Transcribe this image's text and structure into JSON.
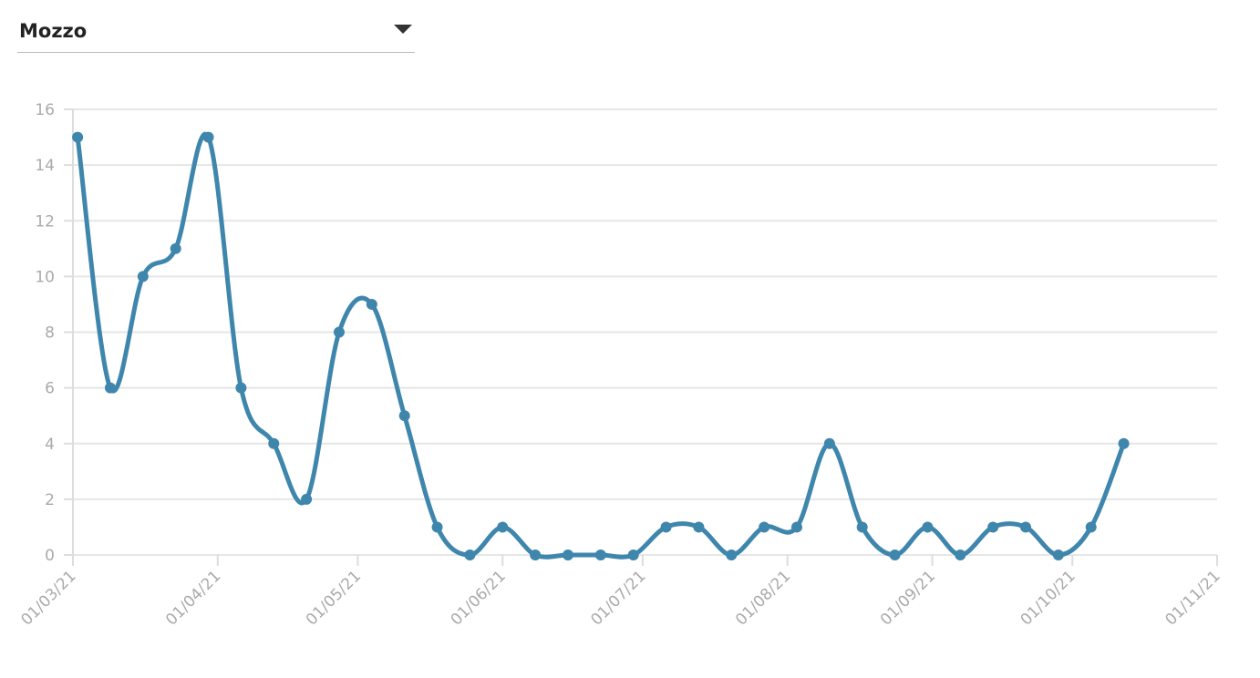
{
  "selector": {
    "label": "Mozzo"
  },
  "chart_data": {
    "type": "line",
    "x": [
      "2021-03-02",
      "2021-03-09",
      "2021-03-16",
      "2021-03-23",
      "2021-03-30",
      "2021-04-06",
      "2021-04-13",
      "2021-04-20",
      "2021-04-27",
      "2021-05-04",
      "2021-05-11",
      "2021-05-18",
      "2021-05-25",
      "2021-06-01",
      "2021-06-08",
      "2021-06-15",
      "2021-06-22",
      "2021-06-29",
      "2021-07-06",
      "2021-07-13",
      "2021-07-20",
      "2021-07-27",
      "2021-08-03",
      "2021-08-10",
      "2021-08-17",
      "2021-08-24",
      "2021-08-31",
      "2021-09-07",
      "2021-09-14",
      "2021-09-21",
      "2021-09-28",
      "2021-10-05",
      "2021-10-12"
    ],
    "series": [
      {
        "color": "#3f86ad",
        "values": [
          15,
          6,
          10,
          11,
          15,
          6,
          4,
          2,
          8,
          9,
          5,
          1,
          0,
          1,
          0,
          0,
          0,
          0,
          1,
          1,
          0,
          1,
          1,
          4,
          1,
          0,
          1,
          0,
          1,
          1,
          0,
          1,
          4
        ]
      }
    ],
    "xlim": [
      "2021-03-01",
      "2021-11-01"
    ],
    "xticks": [
      {
        "value": "2021-03-01",
        "label": "01/03/21"
      },
      {
        "value": "2021-04-01",
        "label": "01/04/21"
      },
      {
        "value": "2021-05-01",
        "label": "01/05/21"
      },
      {
        "value": "2021-06-01",
        "label": "01/06/21"
      },
      {
        "value": "2021-07-01",
        "label": "01/07/21"
      },
      {
        "value": "2021-08-01",
        "label": "01/08/21"
      },
      {
        "value": "2021-09-01",
        "label": "01/09/21"
      },
      {
        "value": "2021-10-01",
        "label": "01/10/21"
      },
      {
        "value": "2021-11-01",
        "label": "01/11/21"
      }
    ],
    "ylim": [
      0,
      16
    ],
    "yticks": [
      0,
      2,
      4,
      6,
      8,
      10,
      12,
      14,
      16
    ],
    "grid": true
  }
}
